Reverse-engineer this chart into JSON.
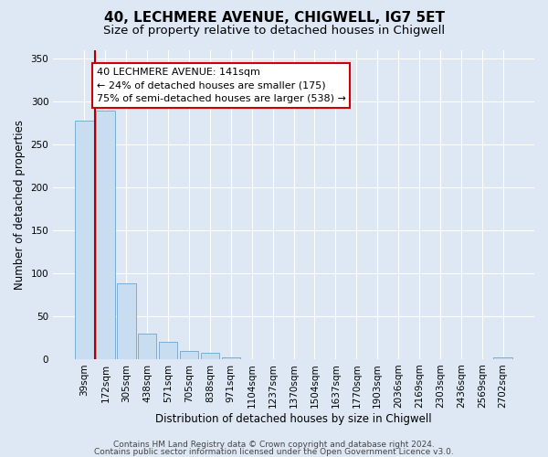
{
  "title": "40, LECHMERE AVENUE, CHIGWELL, IG7 5ET",
  "subtitle": "Size of property relative to detached houses in Chigwell",
  "xlabel": "Distribution of detached houses by size in Chigwell",
  "ylabel": "Number of detached properties",
  "footer_line1": "Contains HM Land Registry data © Crown copyright and database right 2024.",
  "footer_line2": "Contains public sector information licensed under the Open Government Licence v3.0.",
  "bin_labels": [
    "39sqm",
    "172sqm",
    "305sqm",
    "438sqm",
    "571sqm",
    "705sqm",
    "838sqm",
    "971sqm",
    "1104sqm",
    "1237sqm",
    "1370sqm",
    "1504sqm",
    "1637sqm",
    "1770sqm",
    "1903sqm",
    "2036sqm",
    "2169sqm",
    "2303sqm",
    "2436sqm",
    "2569sqm",
    "2702sqm"
  ],
  "bar_heights": [
    278,
    290,
    88,
    30,
    20,
    9,
    7,
    2,
    0,
    0,
    0,
    0,
    0,
    0,
    0,
    0,
    0,
    0,
    0,
    0,
    2
  ],
  "bar_color": "#c8ddef",
  "bar_edgecolor": "#7aaed0",
  "property_line_color": "#aa0000",
  "ylim": [
    0,
    360
  ],
  "yticks": [
    0,
    50,
    100,
    150,
    200,
    250,
    300,
    350
  ],
  "bg_color": "#dde8f4",
  "plot_bg_color": "#dde8f4",
  "grid_color": "#ffffff",
  "title_fontsize": 11,
  "subtitle_fontsize": 9.5,
  "tick_fontsize": 7.5,
  "ylabel_fontsize": 8.5,
  "xlabel_fontsize": 8.5,
  "footer_fontsize": 6.5,
  "annotation_title": "40 LECHMERE AVENUE: 141sqm",
  "annotation_line1": "← 24% of detached houses are smaller (175)",
  "annotation_line2": "75% of semi-detached houses are larger (538) →",
  "annotation_box_edgecolor": "#cc0000",
  "annotation_fontsize": 8
}
